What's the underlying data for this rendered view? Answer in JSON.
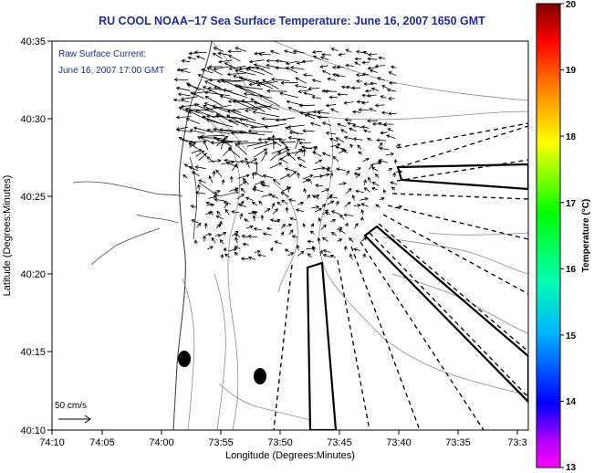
{
  "title": "RU COOL  NOAA−17  Sea Surface Temperature:  June 16, 2007 1650 GMT",
  "annotation": {
    "line1": "Raw Surface Current:",
    "line2": "June 16, 2007 17:00 GMT"
  },
  "scale": {
    "label": "50 cm/s"
  },
  "axes": {
    "xlabel": "Longitude (Degrees:Minutes)",
    "ylabel": "Latitude (Degrees:Minutes)",
    "xticks": [
      "74:10",
      "74:05",
      "74:00",
      "73:55",
      "73:50",
      "73:45",
      "73:40",
      "73:35",
      "73:3"
    ],
    "yticks": [
      "40:35",
      "40:30",
      "40:25",
      "40:20",
      "40:15",
      "40:10"
    ]
  },
  "colorbar": {
    "label": "Temperature (°C)",
    "ticks": [
      "20",
      "19",
      "18",
      "17",
      "16",
      "15",
      "14",
      "13"
    ],
    "range": [
      13,
      20
    ],
    "colors": [
      "#ff00ff",
      "#0000ff",
      "#00b4ff",
      "#00ffb4",
      "#00ff00",
      "#ffff00",
      "#ff8000",
      "#ff0000",
      "#800000"
    ]
  },
  "colors": {
    "title": "#1a2aa8",
    "annotation": "#1a2aa8",
    "contour": "#8a8a8a"
  }
}
